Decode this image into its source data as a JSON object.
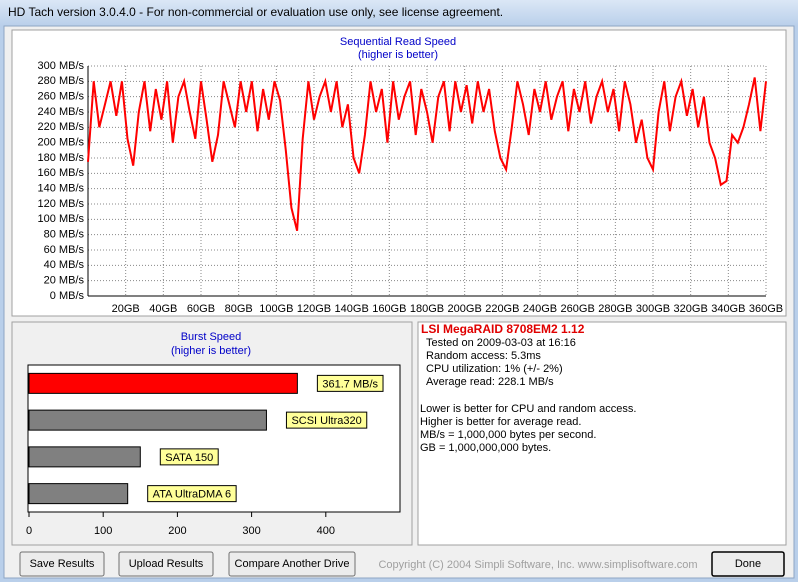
{
  "window": {
    "title": "HD Tach version 3.0.4.0  - For non-commercial or evaluation use only, see license agreement."
  },
  "chart_data": [
    {
      "type": "line",
      "title": "Sequential Read Speed",
      "subtitle": "(higher is better)",
      "color": "#ff0000",
      "grid": true,
      "x": [
        0,
        3,
        6,
        9,
        12,
        15,
        18,
        21,
        24,
        27,
        30,
        33,
        36,
        39,
        42,
        45,
        48,
        51,
        54,
        57,
        60,
        63,
        66,
        69,
        72,
        75,
        78,
        81,
        84,
        87,
        90,
        93,
        96,
        99,
        102,
        105,
        108,
        111,
        114,
        117,
        120,
        123,
        126,
        129,
        132,
        135,
        138,
        141,
        144,
        147,
        150,
        153,
        156,
        159,
        162,
        165,
        168,
        171,
        174,
        177,
        180,
        183,
        186,
        189,
        192,
        195,
        198,
        201,
        204,
        207,
        210,
        213,
        216,
        219,
        222,
        225,
        228,
        231,
        234,
        237,
        240,
        243,
        246,
        249,
        252,
        255,
        258,
        261,
        264,
        267,
        270,
        273,
        276,
        279,
        282,
        285,
        288,
        291,
        294,
        297,
        300,
        303,
        306,
        309,
        312,
        315,
        318,
        321,
        324,
        327,
        330,
        333,
        336,
        339,
        342,
        345,
        348,
        351,
        354,
        357,
        360
      ],
      "values": [
        175,
        280,
        220,
        250,
        280,
        235,
        280,
        205,
        170,
        240,
        280,
        215,
        270,
        230,
        280,
        200,
        260,
        280,
        240,
        205,
        280,
        230,
        175,
        210,
        280,
        250,
        220,
        280,
        240,
        280,
        215,
        270,
        230,
        280,
        255,
        190,
        115,
        85,
        205,
        280,
        230,
        260,
        280,
        240,
        280,
        220,
        250,
        180,
        160,
        210,
        280,
        240,
        270,
        200,
        280,
        230,
        260,
        280,
        210,
        270,
        240,
        200,
        260,
        280,
        215,
        280,
        240,
        275,
        225,
        280,
        240,
        270,
        215,
        180,
        165,
        220,
        280,
        250,
        210,
        270,
        240,
        280,
        230,
        260,
        280,
        215,
        270,
        240,
        280,
        225,
        260,
        280,
        240,
        270,
        215,
        280,
        250,
        200,
        230,
        180,
        165,
        240,
        280,
        215,
        260,
        280,
        235,
        270,
        220,
        260,
        200,
        180,
        145,
        150,
        210,
        200,
        220,
        250,
        285,
        215,
        280
      ],
      "xlim": [
        0,
        360
      ],
      "xticks": [
        {
          "value": 20,
          "label": "20GB"
        },
        {
          "value": 40,
          "label": "40GB"
        },
        {
          "value": 60,
          "label": "60GB"
        },
        {
          "value": 80,
          "label": "80GB"
        },
        {
          "value": 100,
          "label": "100GB"
        },
        {
          "value": 120,
          "label": "120GB"
        },
        {
          "value": 140,
          "label": "140GB"
        },
        {
          "value": 160,
          "label": "160GB"
        },
        {
          "value": 180,
          "label": "180GB"
        },
        {
          "value": 200,
          "label": "200GB"
        },
        {
          "value": 220,
          "label": "220GB"
        },
        {
          "value": 240,
          "label": "240GB"
        },
        {
          "value": 260,
          "label": "260GB"
        },
        {
          "value": 280,
          "label": "280GB"
        },
        {
          "value": 300,
          "label": "300GB"
        },
        {
          "value": 320,
          "label": "320GB"
        },
        {
          "value": 340,
          "label": "340GB"
        },
        {
          "value": 360,
          "label": "360GB"
        }
      ],
      "ylim": [
        0,
        300
      ],
      "yticks": [
        {
          "value": 0,
          "label": "0 MB/s"
        },
        {
          "value": 20,
          "label": "20 MB/s"
        },
        {
          "value": 40,
          "label": "40 MB/s"
        },
        {
          "value": 60,
          "label": "60 MB/s"
        },
        {
          "value": 80,
          "label": "80 MB/s"
        },
        {
          "value": 100,
          "label": "100 MB/s"
        },
        {
          "value": 120,
          "label": "120 MB/s"
        },
        {
          "value": 140,
          "label": "140 MB/s"
        },
        {
          "value": 160,
          "label": "160 MB/s"
        },
        {
          "value": 180,
          "label": "180 MB/s"
        },
        {
          "value": 200,
          "label": "200 MB/s"
        },
        {
          "value": 220,
          "label": "220 MB/s"
        },
        {
          "value": 240,
          "label": "240 MB/s"
        },
        {
          "value": 260,
          "label": "260 MB/s"
        },
        {
          "value": 280,
          "label": "280 MB/s"
        },
        {
          "value": 300,
          "label": "300 MB/s"
        }
      ]
    },
    {
      "type": "barh",
      "title": "Burst Speed",
      "subtitle": "(higher is better)",
      "categories": [
        null,
        "SCSI Ultra320",
        "SATA 150",
        "ATA UltraDMA 6"
      ],
      "values": [
        361.7,
        320,
        150,
        133
      ],
      "value_labels": [
        "361.7 MB/s",
        null,
        null,
        null
      ],
      "colors": [
        "#ff0000",
        "#808080",
        "#808080",
        "#808080"
      ],
      "xlim": [
        0,
        500
      ],
      "xticks": [
        0,
        100,
        200,
        300,
        400
      ]
    }
  ],
  "info": {
    "heading": "LSI MegaRAID 8708EM2 1.12",
    "details": [
      "Tested on 2009-03-03 at 16:16",
      "Random access: 5.3ms",
      "CPU utilization: 1% (+/- 2%)",
      "Average read: 228.1 MB/s"
    ],
    "notes": [
      "Lower is better for CPU and random access.",
      "Higher is better for average read.",
      "MB/s = 1,000,000 bytes per second.",
      "GB = 1,000,000,000 bytes."
    ]
  },
  "buttons": [
    "Save Results",
    "Upload Results",
    "Compare Another Drive",
    "Done"
  ],
  "copyright": "Copyright (C) 2004 Simpli Software, Inc. www.simplisoftware.com"
}
